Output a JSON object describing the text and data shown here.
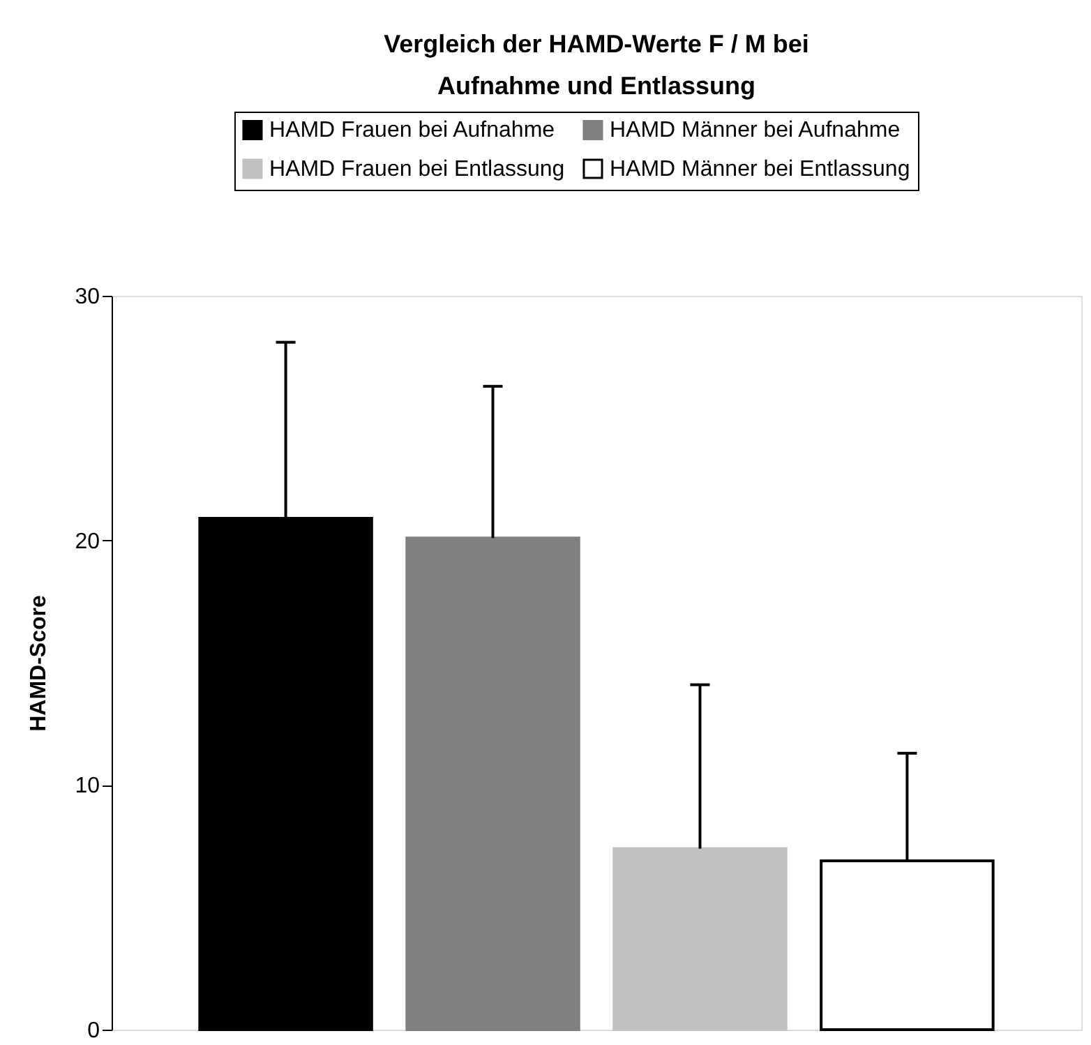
{
  "chart_data": {
    "type": "bar",
    "title": "Vergleich der HAMD-Werte F / M bei Aufnahme und Entlassung",
    "ylabel": "HAMD-Score",
    "categories": [
      null
    ],
    "series": [
      {
        "name": "HAMD Frauen bei Aufnahme",
        "color": "#000000",
        "values": [
          20.9
        ],
        "errors": [
          [
            20.9,
            28.1
          ]
        ]
      },
      {
        "name": "HAMD Männer bei Aufnahme",
        "color": "#808080",
        "values": [
          20.1
        ],
        "errors": [
          [
            20.1,
            26.3
          ]
        ]
      },
      {
        "name": "HAMD Frauen bei Entlassung",
        "color": "#c0c0c0",
        "values": [
          7.4
        ],
        "errors": [
          [
            7.4,
            14.1
          ]
        ]
      },
      {
        "name": "HAMD Männer bei Entlassung",
        "color": "#ffffff",
        "values": [
          6.9
        ],
        "errors": [
          [
            6.9,
            11.3
          ]
        ]
      }
    ],
    "ylim": [
      0,
      30
    ],
    "yticks": [
      0,
      10,
      20,
      30
    ],
    "grid": false,
    "legend": "top"
  }
}
